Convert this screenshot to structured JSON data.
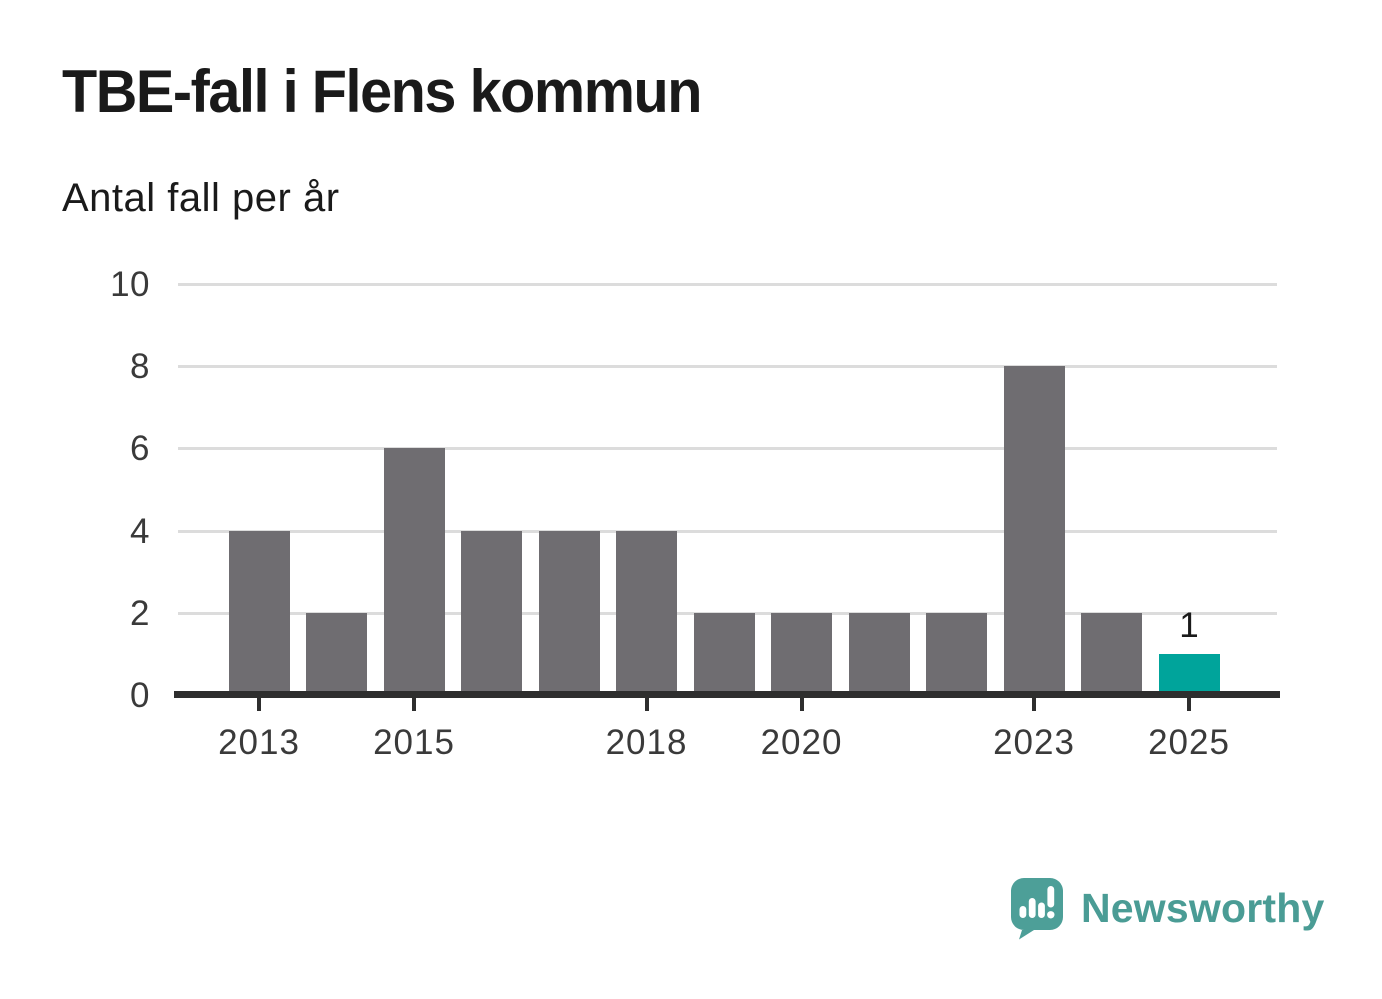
{
  "header": {
    "title": "TBE-fall i Flens kommun",
    "subtitle": "Antal fall per år"
  },
  "chart_data": {
    "type": "bar",
    "title": "TBE-fall i Flens kommun",
    "subtitle": "Antal fall per år",
    "xlabel": "",
    "ylabel": "Antal fall per år",
    "categories": [
      "2013",
      "2014",
      "2015",
      "2016",
      "2017",
      "2018",
      "2019",
      "2020",
      "2021",
      "2022",
      "2023",
      "2024",
      "2025"
    ],
    "values": [
      4,
      2,
      6,
      4,
      4,
      4,
      2,
      2,
      2,
      2,
      8,
      2,
      1
    ],
    "ylim": [
      0,
      10
    ],
    "yticks": [
      0,
      2,
      4,
      6,
      8,
      10
    ],
    "xtick_labels": [
      "2013",
      "2015",
      "2018",
      "2020",
      "2023",
      "2025"
    ],
    "grid": "horizontal",
    "legend": "none",
    "bar_color": "#6f6d71",
    "highlight_color": "#00a49b",
    "highlight_index": 12,
    "data_labels": [
      {
        "index": 12,
        "text": "1"
      }
    ],
    "gridline_color": "#dcdcdc",
    "axis_color": "#2e2e2e",
    "tick_label_color": "#3a3a3a"
  },
  "footer": {
    "brand": "Newsworthy",
    "brand_color": "#4a9c95",
    "logo_icon": "newsworthy-speech-bubble-bar-chart-icon"
  }
}
